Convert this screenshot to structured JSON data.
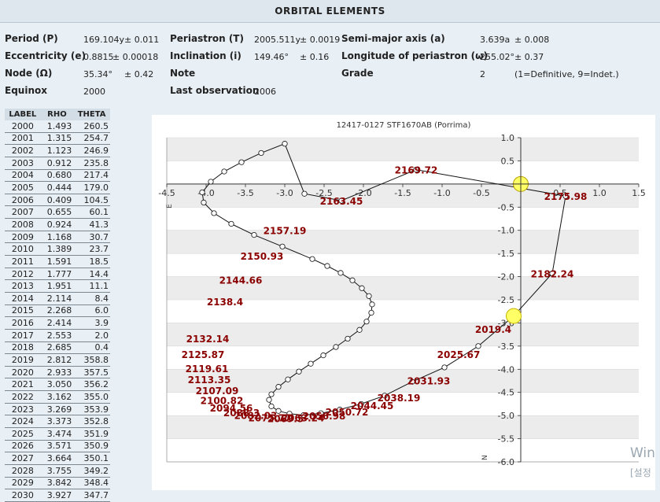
{
  "header": {
    "title": "ORBITAL ELEMENTS"
  },
  "elements": {
    "period_label": "Period (P)",
    "period_value": "169.104y",
    "period_error": "± 0.011",
    "periastron_label": "Periastron (T)",
    "periastron_value": "2005.511y",
    "periastron_error": "± 0.0019",
    "semimajor_label": "Semi-major axis (a)",
    "semimajor_value": "3.639a",
    "semimajor_error": "± 0.008",
    "eccentricity_label": "Eccentricity (e)",
    "eccentricity_value": "0.8815",
    "eccentricity_error": "± 0.00018",
    "inclination_label": "Inclination (i)",
    "inclination_value": "149.46°",
    "inclination_error": "± 0.16",
    "longitude_label": "Longitude of periastron (ω)",
    "longitude_value": "255.02°",
    "longitude_error": "± 0.37",
    "node_label": "Node (Ω)",
    "node_value": "35.34°",
    "node_error": "± 0.42",
    "note_label": "Note",
    "grade_label": "Grade",
    "grade_value": "2",
    "grade_note": "(1=Definitive, 9=Indet.)",
    "equinox_label": "Equinox",
    "equinox_value": "2000",
    "lastobs_label": "Last observation",
    "lastobs_value": "2006"
  },
  "ephemeris": {
    "columns": [
      "LABEL",
      "RHO",
      "THETA"
    ],
    "rows": [
      [
        "2000",
        "1.493",
        "260.5"
      ],
      [
        "2001",
        "1.315",
        "254.7"
      ],
      [
        "2002",
        "1.123",
        "246.9"
      ],
      [
        "2003",
        "0.912",
        "235.8"
      ],
      [
        "2004",
        "0.680",
        "217.4"
      ],
      [
        "2005",
        "0.444",
        "179.0"
      ],
      [
        "2006",
        "0.409",
        "104.5"
      ],
      [
        "2007",
        "0.655",
        "60.1"
      ],
      [
        "2008",
        "0.924",
        "41.3"
      ],
      [
        "2009",
        "1.168",
        "30.7"
      ],
      [
        "2010",
        "1.389",
        "23.7"
      ],
      [
        "2011",
        "1.591",
        "18.5"
      ],
      [
        "2012",
        "1.777",
        "14.4"
      ],
      [
        "2013",
        "1.951",
        "11.1"
      ],
      [
        "2014",
        "2.114",
        "8.4"
      ],
      [
        "2015",
        "2.268",
        "6.0"
      ],
      [
        "2016",
        "2.414",
        "3.9"
      ],
      [
        "2017",
        "2.553",
        "2.0"
      ],
      [
        "2018",
        "2.685",
        "0.4"
      ],
      [
        "2019",
        "2.812",
        "358.8"
      ],
      [
        "2020",
        "2.933",
        "357.5"
      ],
      [
        "2021",
        "3.050",
        "356.2"
      ],
      [
        "2022",
        "3.162",
        "355.0"
      ],
      [
        "2023",
        "3.269",
        "353.9"
      ],
      [
        "2024",
        "3.373",
        "352.8"
      ],
      [
        "2025",
        "3.474",
        "351.9"
      ],
      [
        "2026",
        "3.571",
        "350.9"
      ],
      [
        "2027",
        "3.664",
        "350.1"
      ],
      [
        "2028",
        "3.755",
        "349.2"
      ],
      [
        "2029",
        "3.842",
        "348.4"
      ],
      [
        "2030",
        "3.927",
        "347.7"
      ]
    ]
  },
  "chart_data": {
    "type": "scatter",
    "title": "12417-0127 STF1670AB (Porrima)",
    "xlim": [
      -4.5,
      1.5
    ],
    "ylim": [
      -6.0,
      1.0
    ],
    "xticks": [
      -4.5,
      -4.0,
      -3.5,
      -3.0,
      -2.5,
      -2.0,
      -1.5,
      -1.0,
      -0.5,
      0,
      0.5,
      1.0,
      1.5
    ],
    "xtick_labels": [
      "-4.5",
      "-4.0",
      "-3.5",
      "-3.0",
      "-2.5",
      "-2.0",
      "-1.5",
      "-1.0",
      "-0.5",
      "0",
      "0.5",
      "1.0",
      "1.5"
    ],
    "yticks": [
      1.0,
      0.5,
      0,
      -0.5,
      -1.0,
      -1.5,
      -2.0,
      -2.5,
      -3.0,
      -3.5,
      -4.0,
      -4.5,
      -5.0,
      -5.5,
      -6.0
    ],
    "ytick_labels": [
      "1.0",
      "0.5",
      "0",
      "-0.5",
      "-1.0",
      "-1.5",
      "-2.0",
      "-2.5",
      "-3.0",
      "-3.5",
      "-4.0",
      "-4.5",
      "-5.0",
      "-5.5",
      "-6.0"
    ],
    "east_label": "E",
    "north_label": "N",
    "grid": "horizontal bands",
    "primary": {
      "x": 0,
      "y": 0,
      "color": "#ffff66"
    },
    "current": {
      "x": -0.09,
      "y": -2.85,
      "color": "#ffff66"
    },
    "orbit": {
      "x": [
        -0.09,
        -0.54,
        -0.97,
        -1.38,
        -1.73,
        -2.03,
        -2.3,
        -2.54,
        -2.76,
        -2.94,
        -3.08,
        -3.17,
        -3.2,
        -3.17,
        -3.08,
        -2.96,
        -2.82,
        -2.67,
        -2.51,
        -2.35,
        -2.2,
        -2.05,
        -1.96,
        -1.9,
        -1.89,
        -1.93,
        -2.02,
        -2.14,
        -2.29,
        -2.46,
        -2.65,
        -3.03,
        -3.39,
        -3.68,
        -3.9,
        -4.03,
        -4.05,
        -3.94,
        -3.77,
        -3.55,
        -3.3,
        -3.0,
        -2.75,
        -2.28,
        -1.33,
        0.57,
        0.4,
        -0.09
      ],
      "y": [
        -2.85,
        -3.5,
        -3.96,
        -4.27,
        -4.57,
        -4.75,
        -4.87,
        -4.95,
        -4.99,
        -4.96,
        -4.9,
        -4.8,
        -4.66,
        -4.54,
        -4.38,
        -4.22,
        -4.05,
        -3.88,
        -3.7,
        -3.52,
        -3.34,
        -3.15,
        -2.97,
        -2.78,
        -2.6,
        -2.42,
        -2.25,
        -2.08,
        -1.92,
        -1.77,
        -1.62,
        -1.35,
        -1.1,
        -0.86,
        -0.63,
        -0.4,
        -0.18,
        0.05,
        0.27,
        0.47,
        0.67,
        0.87,
        -0.21,
        -0.36,
        0.31,
        -0.26,
        -1.93,
        -2.85
      ]
    },
    "labels": [
      {
        "text": "2169.72",
        "x": -1.33,
        "y": 0.31
      },
      {
        "text": "2175.98",
        "x": 0.57,
        "y": -0.26
      },
      {
        "text": "2182.24",
        "x": 0.4,
        "y": -1.93
      },
      {
        "text": "2163.45",
        "x": -2.28,
        "y": -0.36
      },
      {
        "text": "2157.19",
        "x": -3.0,
        "y": -1.0
      },
      {
        "text": "2150.93",
        "x": -3.29,
        "y": -1.55
      },
      {
        "text": "2144.66",
        "x": -3.56,
        "y": -2.07
      },
      {
        "text": "2138.4",
        "x": -3.76,
        "y": -2.53
      },
      {
        "text": "2132.14",
        "x": -3.98,
        "y": -3.33
      },
      {
        "text": "2125.87",
        "x": -4.04,
        "y": -3.67
      },
      {
        "text": "2119.61",
        "x": -3.99,
        "y": -3.98
      },
      {
        "text": "2113.35",
        "x": -3.96,
        "y": -4.22
      },
      {
        "text": "2107.09",
        "x": -3.86,
        "y": -4.45
      },
      {
        "text": "2100.82",
        "x": -3.8,
        "y": -4.67
      },
      {
        "text": "2094.56",
        "x": -3.68,
        "y": -4.83
      },
      {
        "text": "2088.3",
        "x": -3.55,
        "y": -4.93
      },
      {
        "text": "2082.03",
        "x": -3.37,
        "y": -4.99
      },
      {
        "text": "2075.77",
        "x": -3.19,
        "y": -5.04
      },
      {
        "text": "2069.5",
        "x": -2.99,
        "y": -5.06
      },
      {
        "text": "2063.24",
        "x": -2.77,
        "y": -5.04
      },
      {
        "text": "2056.98",
        "x": -2.5,
        "y": -5.0
      },
      {
        "text": "2050.72",
        "x": -2.21,
        "y": -4.91
      },
      {
        "text": "2044.45",
        "x": -1.89,
        "y": -4.78
      },
      {
        "text": "2038.19",
        "x": -1.55,
        "y": -4.61
      },
      {
        "text": "2031.93",
        "x": -1.17,
        "y": -4.24
      },
      {
        "text": "2025.67",
        "x": -0.79,
        "y": -3.67
      },
      {
        "text": "2019.4",
        "x": -0.35,
        "y": -3.13
      }
    ]
  },
  "watermark": {
    "line1": "Win",
    "line2": "[설정"
  }
}
